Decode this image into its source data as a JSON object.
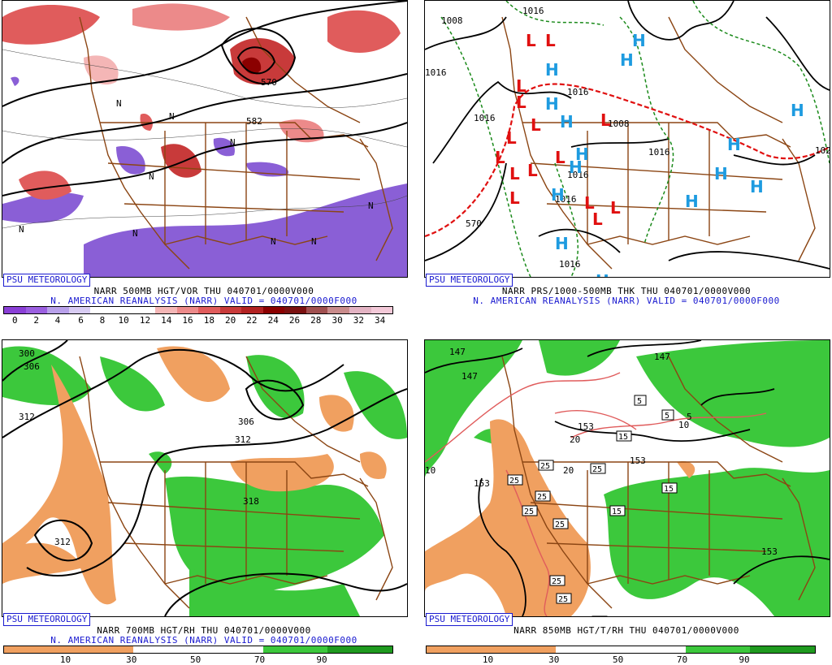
{
  "credit": "PSU METEOROLOGY",
  "panels": {
    "p1": {
      "line1": "NARR 500MB HGT/VOR THU 040701/0000V000",
      "line2": "N. AMERICAN REANALYSIS (NARR) VALID = 040701/0000F000",
      "colorbar_ticks": [
        "0",
        "2",
        "4",
        "6",
        "8",
        "10",
        "12",
        "14",
        "16",
        "18",
        "20",
        "22",
        "24",
        "26",
        "28",
        "30",
        "32",
        "34"
      ],
      "colors": [
        "#8a3fd6",
        "#9b5fe0",
        "#b8a0ea",
        "#d8ccf3",
        "#ffffff",
        "#ffffff",
        "#ffffff",
        "#f4b6b6",
        "#ec8a8a",
        "#e05c5c",
        "#c83a3a",
        "#b22222",
        "#8b0000",
        "#7a1010",
        "#a05050",
        "#c98b8b",
        "#e3b3c3",
        "#f3c9d8"
      ],
      "labels": [
        "570",
        "582",
        "N"
      ]
    },
    "p2": {
      "line1": "NARR PRS/1000-500MB THK THU 040701/0000V000",
      "line2": "N. AMERICAN REANALYSIS (NARR) VALID = 040701/0000F000",
      "labels": [
        "1008",
        "1016",
        "1016",
        "1016",
        "1016",
        "1008",
        "1016",
        "1016",
        "1016",
        "1016",
        "570",
        "102"
      ],
      "high_symbol": "H",
      "low_symbol": "L"
    },
    "p3": {
      "line1": "NARR 700MB HGT/RH THU 040701/0000V000",
      "line2": "N. AMERICAN REANALYSIS (NARR) VALID = 040701/0000F000",
      "colorbar_ticks": [
        "10",
        "30",
        "50",
        "70",
        "90"
      ],
      "labels": [
        "300",
        "306",
        "312",
        "306",
        "312",
        "318",
        "312"
      ]
    },
    "p4": {
      "line1": "NARR 850MB HGT/T/RH THU 040701/0000V000",
      "colorbar_ticks": [
        "10",
        "30",
        "50",
        "70",
        "90"
      ],
      "labels": [
        "147",
        "147",
        "147",
        "153",
        "153",
        "153",
        "153",
        "5",
        "5",
        "10",
        "10",
        "15",
        "15",
        "15",
        "15",
        "20",
        "20",
        "25",
        "25",
        "25",
        "25",
        "25",
        "25",
        "25",
        "25",
        "15"
      ]
    }
  },
  "legend_colors": {
    "dry": "#f0a060",
    "moist": "#3cc83c",
    "vort_purple": "#8a5fd6",
    "vort_red": "#c83a3a",
    "contour": "#000000",
    "geo": "#8b4513",
    "high": "#1e9be0",
    "low": "#e01010",
    "thk": "#e01010",
    "dash_green": "#1a8a1a"
  }
}
